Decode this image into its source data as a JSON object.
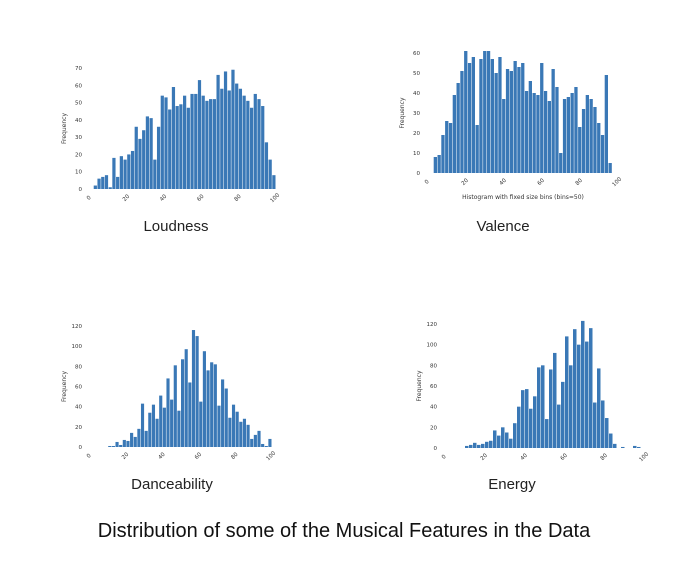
{
  "figure": {
    "caption": "Distribution of some of the Musical Features in the Data"
  },
  "chart_data": [
    {
      "type": "bar",
      "caption": "Loudness",
      "ylabel": "Frequency",
      "xlabel": "",
      "xlim": [
        0,
        100
      ],
      "ylim": [
        0,
        70
      ],
      "xticks": [
        0,
        20,
        40,
        60,
        80,
        100
      ],
      "yticks": [
        0,
        10,
        20,
        30,
        40,
        50,
        60,
        70
      ],
      "bar_color": "#3a78b6",
      "bins": [
        {
          "x0": 2,
          "x1": 4,
          "value": 2
        },
        {
          "x0": 4,
          "x1": 6,
          "value": 6
        },
        {
          "x0": 6,
          "x1": 8,
          "value": 7
        },
        {
          "x0": 8,
          "x1": 10,
          "value": 8
        },
        {
          "x0": 10,
          "x1": 12,
          "value": 1
        },
        {
          "x0": 12,
          "x1": 14,
          "value": 18
        },
        {
          "x0": 14,
          "x1": 16,
          "value": 7
        },
        {
          "x0": 16,
          "x1": 18,
          "value": 19
        },
        {
          "x0": 18,
          "x1": 20,
          "value": 17
        },
        {
          "x0": 20,
          "x1": 22,
          "value": 20
        },
        {
          "x0": 22,
          "x1": 24,
          "value": 22
        },
        {
          "x0": 24,
          "x1": 26,
          "value": 36
        },
        {
          "x0": 26,
          "x1": 28,
          "value": 29
        },
        {
          "x0": 28,
          "x1": 30,
          "value": 34
        },
        {
          "x0": 30,
          "x1": 32,
          "value": 42
        },
        {
          "x0": 32,
          "x1": 34,
          "value": 41
        },
        {
          "x0": 34,
          "x1": 36,
          "value": 17
        },
        {
          "x0": 36,
          "x1": 38,
          "value": 36
        },
        {
          "x0": 38,
          "x1": 40,
          "value": 54
        },
        {
          "x0": 40,
          "x1": 42,
          "value": 53
        },
        {
          "x0": 42,
          "x1": 44,
          "value": 46
        },
        {
          "x0": 44,
          "x1": 46,
          "value": 59
        },
        {
          "x0": 46,
          "x1": 48,
          "value": 48
        },
        {
          "x0": 48,
          "x1": 50,
          "value": 49
        },
        {
          "x0": 50,
          "x1": 52,
          "value": 54
        },
        {
          "x0": 52,
          "x1": 54,
          "value": 47
        },
        {
          "x0": 54,
          "x1": 56,
          "value": 55
        },
        {
          "x0": 56,
          "x1": 58,
          "value": 55
        },
        {
          "x0": 58,
          "x1": 60,
          "value": 63
        },
        {
          "x0": 60,
          "x1": 62,
          "value": 54
        },
        {
          "x0": 62,
          "x1": 64,
          "value": 51
        },
        {
          "x0": 64,
          "x1": 66,
          "value": 52
        },
        {
          "x0": 66,
          "x1": 68,
          "value": 52
        },
        {
          "x0": 68,
          "x1": 70,
          "value": 66
        },
        {
          "x0": 70,
          "x1": 72,
          "value": 58
        },
        {
          "x0": 72,
          "x1": 74,
          "value": 68
        },
        {
          "x0": 74,
          "x1": 76,
          "value": 57
        },
        {
          "x0": 76,
          "x1": 78,
          "value": 69
        },
        {
          "x0": 78,
          "x1": 80,
          "value": 61
        },
        {
          "x0": 80,
          "x1": 82,
          "value": 58
        },
        {
          "x0": 82,
          "x1": 84,
          "value": 54
        },
        {
          "x0": 84,
          "x1": 86,
          "value": 51
        },
        {
          "x0": 86,
          "x1": 88,
          "value": 47
        },
        {
          "x0": 88,
          "x1": 90,
          "value": 55
        },
        {
          "x0": 90,
          "x1": 92,
          "value": 52
        },
        {
          "x0": 92,
          "x1": 94,
          "value": 48
        },
        {
          "x0": 94,
          "x1": 96,
          "value": 27
        },
        {
          "x0": 96,
          "x1": 98,
          "value": 17
        },
        {
          "x0": 98,
          "x1": 100,
          "value": 8
        }
      ]
    },
    {
      "type": "bar",
      "caption": "Valence",
      "ylabel": "Frequency",
      "xlabel": "Histogram with fixed size bins (bins=50)",
      "xlim": [
        0,
        100
      ],
      "ylim": [
        0,
        60
      ],
      "xticks": [
        0,
        20,
        40,
        60,
        80,
        100
      ],
      "yticks": [
        0,
        10,
        20,
        30,
        40,
        50,
        60
      ],
      "bar_color": "#3a78b6",
      "bins": [
        {
          "x0": 3,
          "x1": 5,
          "value": 8
        },
        {
          "x0": 5,
          "x1": 7,
          "value": 9
        },
        {
          "x0": 7,
          "x1": 9,
          "value": 19
        },
        {
          "x0": 9,
          "x1": 11,
          "value": 26
        },
        {
          "x0": 11,
          "x1": 13,
          "value": 25
        },
        {
          "x0": 13,
          "x1": 15,
          "value": 39
        },
        {
          "x0": 15,
          "x1": 17,
          "value": 45
        },
        {
          "x0": 17,
          "x1": 19,
          "value": 51
        },
        {
          "x0": 19,
          "x1": 21,
          "value": 61
        },
        {
          "x0": 21,
          "x1": 23,
          "value": 55
        },
        {
          "x0": 23,
          "x1": 25,
          "value": 58
        },
        {
          "x0": 25,
          "x1": 27,
          "value": 24
        },
        {
          "x0": 27,
          "x1": 29,
          "value": 57
        },
        {
          "x0": 29,
          "x1": 31,
          "value": 61
        },
        {
          "x0": 31,
          "x1": 33,
          "value": 61
        },
        {
          "x0": 33,
          "x1": 35,
          "value": 57
        },
        {
          "x0": 35,
          "x1": 37,
          "value": 50
        },
        {
          "x0": 37,
          "x1": 39,
          "value": 58
        },
        {
          "x0": 39,
          "x1": 41,
          "value": 37
        },
        {
          "x0": 41,
          "x1": 43,
          "value": 52
        },
        {
          "x0": 43,
          "x1": 45,
          "value": 51
        },
        {
          "x0": 45,
          "x1": 47,
          "value": 56
        },
        {
          "x0": 47,
          "x1": 49,
          "value": 53
        },
        {
          "x0": 49,
          "x1": 51,
          "value": 55
        },
        {
          "x0": 51,
          "x1": 53,
          "value": 41
        },
        {
          "x0": 53,
          "x1": 55,
          "value": 46
        },
        {
          "x0": 55,
          "x1": 57,
          "value": 40
        },
        {
          "x0": 57,
          "x1": 59,
          "value": 39
        },
        {
          "x0": 59,
          "x1": 61,
          "value": 55
        },
        {
          "x0": 61,
          "x1": 63,
          "value": 41
        },
        {
          "x0": 63,
          "x1": 65,
          "value": 36
        },
        {
          "x0": 65,
          "x1": 67,
          "value": 52
        },
        {
          "x0": 67,
          "x1": 69,
          "value": 43
        },
        {
          "x0": 69,
          "x1": 71,
          "value": 10
        },
        {
          "x0": 71,
          "x1": 73,
          "value": 37
        },
        {
          "x0": 73,
          "x1": 75,
          "value": 38
        },
        {
          "x0": 75,
          "x1": 77,
          "value": 40
        },
        {
          "x0": 77,
          "x1": 79,
          "value": 43
        },
        {
          "x0": 79,
          "x1": 81,
          "value": 23
        },
        {
          "x0": 81,
          "x1": 83,
          "value": 32
        },
        {
          "x0": 83,
          "x1": 85,
          "value": 39
        },
        {
          "x0": 85,
          "x1": 87,
          "value": 37
        },
        {
          "x0": 87,
          "x1": 89,
          "value": 33
        },
        {
          "x0": 89,
          "x1": 91,
          "value": 25
        },
        {
          "x0": 91,
          "x1": 93,
          "value": 19
        },
        {
          "x0": 93,
          "x1": 95,
          "value": 49
        },
        {
          "x0": 95,
          "x1": 97,
          "value": 5
        }
      ]
    },
    {
      "type": "bar",
      "caption": "Danceability",
      "ylabel": "Frequency",
      "xlabel": "",
      "xlim": [
        0,
        100
      ],
      "ylim": [
        0,
        120
      ],
      "xticks": [
        0,
        20,
        40,
        60,
        80,
        100
      ],
      "yticks": [
        0,
        20,
        40,
        60,
        80,
        100,
        120
      ],
      "bar_color": "#3a78b6",
      "bins": [
        {
          "x0": 10,
          "x1": 12,
          "value": 1
        },
        {
          "x0": 12,
          "x1": 14,
          "value": 1
        },
        {
          "x0": 14,
          "x1": 16,
          "value": 5
        },
        {
          "x0": 16,
          "x1": 18,
          "value": 2
        },
        {
          "x0": 18,
          "x1": 20,
          "value": 7
        },
        {
          "x0": 20,
          "x1": 22,
          "value": 6
        },
        {
          "x0": 22,
          "x1": 24,
          "value": 14
        },
        {
          "x0": 24,
          "x1": 26,
          "value": 10
        },
        {
          "x0": 26,
          "x1": 28,
          "value": 18
        },
        {
          "x0": 28,
          "x1": 30,
          "value": 43
        },
        {
          "x0": 30,
          "x1": 32,
          "value": 16
        },
        {
          "x0": 32,
          "x1": 34,
          "value": 34
        },
        {
          "x0": 34,
          "x1": 36,
          "value": 42
        },
        {
          "x0": 36,
          "x1": 38,
          "value": 28
        },
        {
          "x0": 38,
          "x1": 40,
          "value": 51
        },
        {
          "x0": 40,
          "x1": 42,
          "value": 39
        },
        {
          "x0": 42,
          "x1": 44,
          "value": 68
        },
        {
          "x0": 44,
          "x1": 46,
          "value": 47
        },
        {
          "x0": 46,
          "x1": 48,
          "value": 81
        },
        {
          "x0": 48,
          "x1": 50,
          "value": 36
        },
        {
          "x0": 50,
          "x1": 52,
          "value": 87
        },
        {
          "x0": 52,
          "x1": 54,
          "value": 97
        },
        {
          "x0": 54,
          "x1": 56,
          "value": 64
        },
        {
          "x0": 56,
          "x1": 58,
          "value": 116
        },
        {
          "x0": 58,
          "x1": 60,
          "value": 110
        },
        {
          "x0": 60,
          "x1": 62,
          "value": 45
        },
        {
          "x0": 62,
          "x1": 64,
          "value": 95
        },
        {
          "x0": 64,
          "x1": 66,
          "value": 76
        },
        {
          "x0": 66,
          "x1": 68,
          "value": 84
        },
        {
          "x0": 68,
          "x1": 70,
          "value": 82
        },
        {
          "x0": 70,
          "x1": 72,
          "value": 41
        },
        {
          "x0": 72,
          "x1": 74,
          "value": 67
        },
        {
          "x0": 74,
          "x1": 76,
          "value": 58
        },
        {
          "x0": 76,
          "x1": 78,
          "value": 29
        },
        {
          "x0": 78,
          "x1": 80,
          "value": 42
        },
        {
          "x0": 80,
          "x1": 82,
          "value": 35
        },
        {
          "x0": 82,
          "x1": 84,
          "value": 25
        },
        {
          "x0": 84,
          "x1": 86,
          "value": 28
        },
        {
          "x0": 86,
          "x1": 88,
          "value": 22
        },
        {
          "x0": 88,
          "x1": 90,
          "value": 8
        },
        {
          "x0": 90,
          "x1": 92,
          "value": 12
        },
        {
          "x0": 92,
          "x1": 94,
          "value": 16
        },
        {
          "x0": 94,
          "x1": 96,
          "value": 3
        },
        {
          "x0": 96,
          "x1": 98,
          "value": 1
        },
        {
          "x0": 98,
          "x1": 100,
          "value": 8
        }
      ]
    },
    {
      "type": "bar",
      "caption": "Energy",
      "ylabel": "Frequency",
      "xlabel": "",
      "xlim": [
        0,
        100
      ],
      "ylim": [
        0,
        120
      ],
      "xticks": [
        0,
        20,
        40,
        60,
        80,
        100
      ],
      "yticks": [
        0,
        20,
        40,
        60,
        80,
        100,
        120
      ],
      "bar_color": "#3a78b6",
      "bins": [
        {
          "x0": 10,
          "x1": 12,
          "value": 2
        },
        {
          "x0": 12,
          "x1": 14,
          "value": 3
        },
        {
          "x0": 14,
          "x1": 16,
          "value": 5
        },
        {
          "x0": 16,
          "x1": 18,
          "value": 3
        },
        {
          "x0": 18,
          "x1": 20,
          "value": 4
        },
        {
          "x0": 20,
          "x1": 22,
          "value": 6
        },
        {
          "x0": 22,
          "x1": 24,
          "value": 7
        },
        {
          "x0": 24,
          "x1": 26,
          "value": 17
        },
        {
          "x0": 26,
          "x1": 28,
          "value": 12
        },
        {
          "x0": 28,
          "x1": 30,
          "value": 20
        },
        {
          "x0": 30,
          "x1": 32,
          "value": 15
        },
        {
          "x0": 32,
          "x1": 34,
          "value": 9
        },
        {
          "x0": 34,
          "x1": 36,
          "value": 24
        },
        {
          "x0": 36,
          "x1": 38,
          "value": 40
        },
        {
          "x0": 38,
          "x1": 40,
          "value": 56
        },
        {
          "x0": 40,
          "x1": 42,
          "value": 57
        },
        {
          "x0": 42,
          "x1": 44,
          "value": 38
        },
        {
          "x0": 44,
          "x1": 46,
          "value": 50
        },
        {
          "x0": 46,
          "x1": 48,
          "value": 78
        },
        {
          "x0": 48,
          "x1": 50,
          "value": 80
        },
        {
          "x0": 50,
          "x1": 52,
          "value": 28
        },
        {
          "x0": 52,
          "x1": 54,
          "value": 76
        },
        {
          "x0": 54,
          "x1": 56,
          "value": 92
        },
        {
          "x0": 56,
          "x1": 58,
          "value": 42
        },
        {
          "x0": 58,
          "x1": 60,
          "value": 64
        },
        {
          "x0": 60,
          "x1": 62,
          "value": 108
        },
        {
          "x0": 62,
          "x1": 64,
          "value": 80
        },
        {
          "x0": 64,
          "x1": 66,
          "value": 115
        },
        {
          "x0": 66,
          "x1": 68,
          "value": 100
        },
        {
          "x0": 68,
          "x1": 70,
          "value": 123
        },
        {
          "x0": 70,
          "x1": 72,
          "value": 103
        },
        {
          "x0": 72,
          "x1": 74,
          "value": 116
        },
        {
          "x0": 74,
          "x1": 76,
          "value": 44
        },
        {
          "x0": 76,
          "x1": 78,
          "value": 77
        },
        {
          "x0": 78,
          "x1": 80,
          "value": 46
        },
        {
          "x0": 80,
          "x1": 82,
          "value": 29
        },
        {
          "x0": 82,
          "x1": 84,
          "value": 14
        },
        {
          "x0": 84,
          "x1": 86,
          "value": 4
        },
        {
          "x0": 88,
          "x1": 90,
          "value": 1
        },
        {
          "x0": 94,
          "x1": 96,
          "value": 2
        },
        {
          "x0": 96,
          "x1": 98,
          "value": 1
        }
      ]
    }
  ]
}
